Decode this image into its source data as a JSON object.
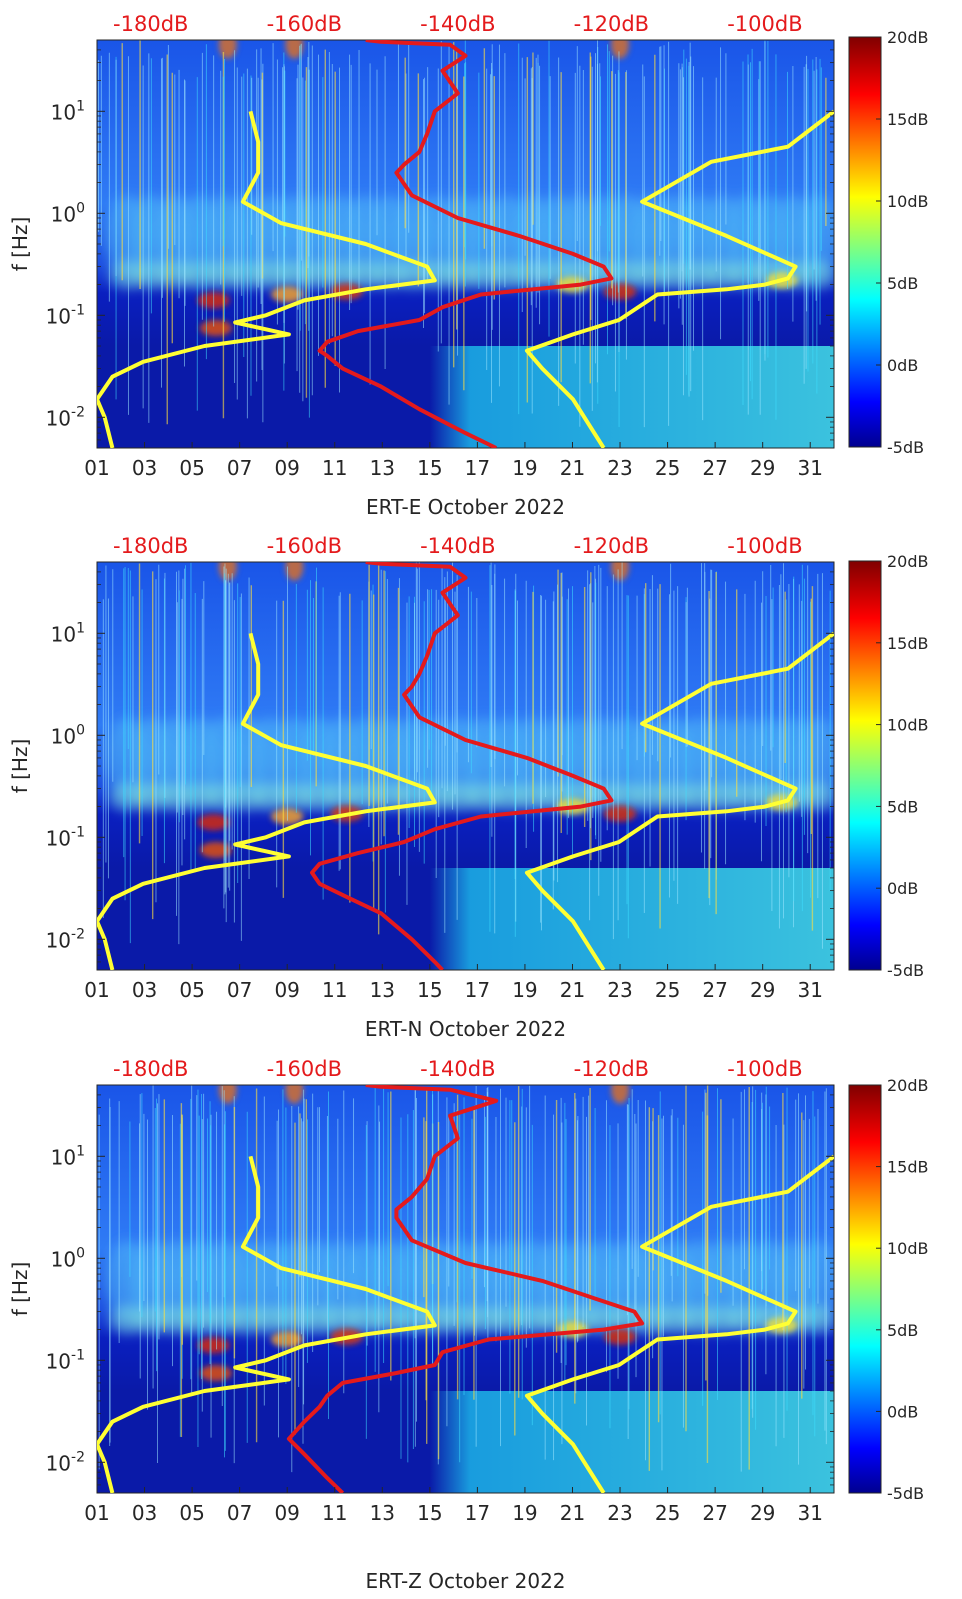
{
  "chart_data": [
    {
      "type": "heatmap",
      "station": "ERT-E",
      "xlabel": "ERT-E October 2022",
      "ylabel": "f [Hz]",
      "x_ticks": [
        "01",
        "03",
        "05",
        "07",
        "09",
        "11",
        "13",
        "15",
        "17",
        "19",
        "21",
        "23",
        "25",
        "27",
        "29",
        "31"
      ],
      "x_range_days": [
        1,
        32
      ],
      "y_scale": "log",
      "y_ticks": [
        "10^{-2}",
        "10^{-1}",
        "10^{0}",
        "10^{1}"
      ],
      "y_range_hz": [
        0.005,
        50
      ],
      "top_axis_ticks": [
        "-180dB",
        "-160dB",
        "-140dB",
        "-120dB",
        "-100dB"
      ],
      "top_axis_range_db": [
        -187,
        -91
      ],
      "colorbar": {
        "ticks": [
          "20dB",
          "15dB",
          "10dB",
          "5dB",
          "0dB",
          "-5dB"
        ],
        "range_db": [
          -5,
          20
        ],
        "colormap": "jet"
      },
      "series": [
        {
          "color": "#e41a1c",
          "points": [
            [
              -152,
              50
            ],
            [
              -150,
              48
            ],
            [
              -141,
              45
            ],
            [
              -139,
              35
            ],
            [
              -142,
              25
            ],
            [
              -140,
              15
            ],
            [
              -143,
              10
            ],
            [
              -144,
              6
            ],
            [
              -145,
              4
            ],
            [
              -147,
              3
            ],
            [
              -148,
              2.5
            ],
            [
              -146,
              1.5
            ],
            [
              -140,
              0.9
            ],
            [
              -132,
              0.6
            ],
            [
              -125,
              0.4
            ],
            [
              -121,
              0.3
            ],
            [
              -120,
              0.23
            ],
            [
              -124,
              0.2
            ],
            [
              -137,
              0.16
            ],
            [
              -142,
              0.12
            ],
            [
              -145,
              0.09
            ],
            [
              -153,
              0.07
            ],
            [
              -157,
              0.055
            ],
            [
              -158,
              0.045
            ],
            [
              -157,
              0.04
            ],
            [
              -155,
              0.03
            ],
            [
              -150,
              0.02
            ],
            [
              -145,
              0.012
            ],
            [
              -139,
              0.007
            ],
            [
              -135,
              0.005
            ]
          ]
        },
        {
          "color": "#ffff33",
          "points": [
            [
              -167,
              10
            ],
            [
              -166,
              5
            ],
            [
              -166,
              2.5
            ],
            [
              -168,
              1.3
            ],
            [
              -163,
              0.8
            ],
            [
              -152,
              0.5
            ],
            [
              -144,
              0.3
            ],
            [
              -143,
              0.22
            ],
            [
              -152,
              0.18
            ],
            [
              -160,
              0.14
            ],
            [
              -165,
              0.1
            ],
            [
              -169,
              0.085
            ],
            [
              -162,
              0.065
            ],
            [
              -173,
              0.05
            ],
            [
              -181,
              0.035
            ],
            [
              -185,
              0.025
            ],
            [
              -187,
              0.015
            ],
            [
              -186,
              0.01
            ],
            [
              -185,
              0.005
            ]
          ]
        },
        {
          "color": "#ffff33",
          "points": [
            [
              -91,
              10
            ],
            [
              -97,
              4.5
            ],
            [
              -107,
              3.2
            ],
            [
              -116,
              1.3
            ],
            [
              -105,
              0.6
            ],
            [
              -96,
              0.3
            ],
            [
              -97,
              0.23
            ],
            [
              -100,
              0.2
            ],
            [
              -105,
              0.18
            ],
            [
              -114,
              0.16
            ],
            [
              -119,
              0.09
            ],
            [
              -125,
              0.065
            ],
            [
              -131,
              0.045
            ],
            [
              -129,
              0.03
            ],
            [
              -125,
              0.015
            ],
            [
              -121,
              0.005
            ]
          ]
        }
      ]
    },
    {
      "type": "heatmap",
      "station": "ERT-N",
      "xlabel": "ERT-N October 2022",
      "ylabel": "f [Hz]",
      "x_ticks": [
        "01",
        "03",
        "05",
        "07",
        "09",
        "11",
        "13",
        "15",
        "17",
        "19",
        "21",
        "23",
        "25",
        "27",
        "29",
        "31"
      ],
      "x_range_days": [
        1,
        32
      ],
      "y_scale": "log",
      "y_ticks": [
        "10^{-2}",
        "10^{-1}",
        "10^{0}",
        "10^{1}"
      ],
      "y_range_hz": [
        0.005,
        50
      ],
      "top_axis_ticks": [
        "-180dB",
        "-160dB",
        "-140dB",
        "-120dB",
        "-100dB"
      ],
      "top_axis_range_db": [
        -187,
        -91
      ],
      "colorbar": {
        "ticks": [
          "20dB",
          "15dB",
          "10dB",
          "5dB",
          "0dB",
          "-5dB"
        ],
        "range_db": [
          -5,
          20
        ],
        "colormap": "jet"
      },
      "series": [
        {
          "color": "#e41a1c",
          "points": [
            [
              -152,
              50
            ],
            [
              -150,
              48
            ],
            [
              -141,
              45
            ],
            [
              -139,
              35
            ],
            [
              -142,
              25
            ],
            [
              -140,
              15
            ],
            [
              -143,
              10
            ],
            [
              -144,
              6
            ],
            [
              -145,
              4
            ],
            [
              -146,
              3
            ],
            [
              -147,
              2.5
            ],
            [
              -145,
              1.5
            ],
            [
              -139,
              0.9
            ],
            [
              -131,
              0.6
            ],
            [
              -125,
              0.4
            ],
            [
              -121,
              0.3
            ],
            [
              -120,
              0.23
            ],
            [
              -124,
              0.2
            ],
            [
              -137,
              0.16
            ],
            [
              -143,
              0.12
            ],
            [
              -147,
              0.09
            ],
            [
              -153,
              0.07
            ],
            [
              -158,
              0.055
            ],
            [
              -159,
              0.045
            ],
            [
              -158,
              0.035
            ],
            [
              -154,
              0.025
            ],
            [
              -150,
              0.018
            ],
            [
              -146,
              0.01
            ],
            [
              -143,
              0.006
            ],
            [
              -142,
              0.005
            ]
          ]
        },
        {
          "color": "#ffff33",
          "points": [
            [
              -167,
              10
            ],
            [
              -166,
              5
            ],
            [
              -166,
              2.5
            ],
            [
              -168,
              1.3
            ],
            [
              -163,
              0.8
            ],
            [
              -152,
              0.5
            ],
            [
              -144,
              0.3
            ],
            [
              -143,
              0.22
            ],
            [
              -152,
              0.18
            ],
            [
              -160,
              0.14
            ],
            [
              -165,
              0.1
            ],
            [
              -169,
              0.085
            ],
            [
              -162,
              0.065
            ],
            [
              -173,
              0.05
            ],
            [
              -181,
              0.035
            ],
            [
              -185,
              0.025
            ],
            [
              -187,
              0.015
            ],
            [
              -186,
              0.01
            ],
            [
              -185,
              0.005
            ]
          ]
        },
        {
          "color": "#ffff33",
          "points": [
            [
              -91,
              10
            ],
            [
              -97,
              4.5
            ],
            [
              -107,
              3.2
            ],
            [
              -116,
              1.3
            ],
            [
              -105,
              0.6
            ],
            [
              -96,
              0.3
            ],
            [
              -97,
              0.23
            ],
            [
              -100,
              0.2
            ],
            [
              -105,
              0.18
            ],
            [
              -114,
              0.16
            ],
            [
              -119,
              0.09
            ],
            [
              -125,
              0.065
            ],
            [
              -131,
              0.045
            ],
            [
              -129,
              0.03
            ],
            [
              -125,
              0.015
            ],
            [
              -121,
              0.005
            ]
          ]
        }
      ]
    },
    {
      "type": "heatmap",
      "station": "ERT-Z",
      "xlabel": "ERT-Z October 2022",
      "ylabel": "f [Hz]",
      "x_ticks": [
        "01",
        "03",
        "05",
        "07",
        "09",
        "11",
        "13",
        "15",
        "17",
        "19",
        "21",
        "23",
        "25",
        "27",
        "29",
        "31"
      ],
      "x_range_days": [
        1,
        32
      ],
      "y_scale": "log",
      "y_ticks": [
        "10^{-2}",
        "10^{-1}",
        "10^{0}",
        "10^{1}"
      ],
      "y_range_hz": [
        0.005,
        50
      ],
      "top_axis_ticks": [
        "-180dB",
        "-160dB",
        "-140dB",
        "-120dB",
        "-100dB"
      ],
      "top_axis_range_db": [
        -187,
        -91
      ],
      "colorbar": {
        "ticks": [
          "20dB",
          "15dB",
          "10dB",
          "5dB",
          "0dB",
          "-5dB"
        ],
        "range_db": [
          -5,
          20
        ],
        "colormap": "jet"
      },
      "series": [
        {
          "color": "#e41a1c",
          "points": [
            [
              -152,
              50
            ],
            [
              -150,
              48
            ],
            [
              -141,
              45
            ],
            [
              -135,
              35
            ],
            [
              -141,
              25
            ],
            [
              -140,
              15
            ],
            [
              -143,
              10
            ],
            [
              -144,
              6
            ],
            [
              -146,
              4
            ],
            [
              -148,
              3
            ],
            [
              -148,
              2.5
            ],
            [
              -146,
              1.5
            ],
            [
              -139,
              0.9
            ],
            [
              -129,
              0.6
            ],
            [
              -122,
              0.4
            ],
            [
              -117,
              0.3
            ],
            [
              -116,
              0.23
            ],
            [
              -121,
              0.2
            ],
            [
              -136,
              0.16
            ],
            [
              -142,
              0.12
            ],
            [
              -143,
              0.09
            ],
            [
              -148,
              0.075
            ],
            [
              -155,
              0.06
            ],
            [
              -157,
              0.045
            ],
            [
              -158,
              0.035
            ],
            [
              -160,
              0.025
            ],
            [
              -162,
              0.017
            ],
            [
              -160,
              0.012
            ],
            [
              -157,
              0.007
            ],
            [
              -155,
              0.005
            ]
          ]
        },
        {
          "color": "#ffff33",
          "points": [
            [
              -167,
              10
            ],
            [
              -166,
              5
            ],
            [
              -166,
              2.5
            ],
            [
              -168,
              1.3
            ],
            [
              -163,
              0.8
            ],
            [
              -152,
              0.5
            ],
            [
              -144,
              0.3
            ],
            [
              -143,
              0.22
            ],
            [
              -152,
              0.18
            ],
            [
              -160,
              0.14
            ],
            [
              -165,
              0.1
            ],
            [
              -169,
              0.085
            ],
            [
              -162,
              0.065
            ],
            [
              -173,
              0.05
            ],
            [
              -181,
              0.035
            ],
            [
              -185,
              0.025
            ],
            [
              -187,
              0.015
            ],
            [
              -186,
              0.01
            ],
            [
              -185,
              0.005
            ]
          ]
        },
        {
          "color": "#ffff33",
          "points": [
            [
              -91,
              10
            ],
            [
              -97,
              4.5
            ],
            [
              -107,
              3.2
            ],
            [
              -116,
              1.3
            ],
            [
              -105,
              0.6
            ],
            [
              -96,
              0.3
            ],
            [
              -97,
              0.23
            ],
            [
              -100,
              0.2
            ],
            [
              -105,
              0.18
            ],
            [
              -114,
              0.16
            ],
            [
              -119,
              0.09
            ],
            [
              -125,
              0.065
            ],
            [
              -131,
              0.045
            ],
            [
              -129,
              0.03
            ],
            [
              -125,
              0.015
            ],
            [
              -121,
              0.005
            ]
          ]
        }
      ]
    }
  ]
}
